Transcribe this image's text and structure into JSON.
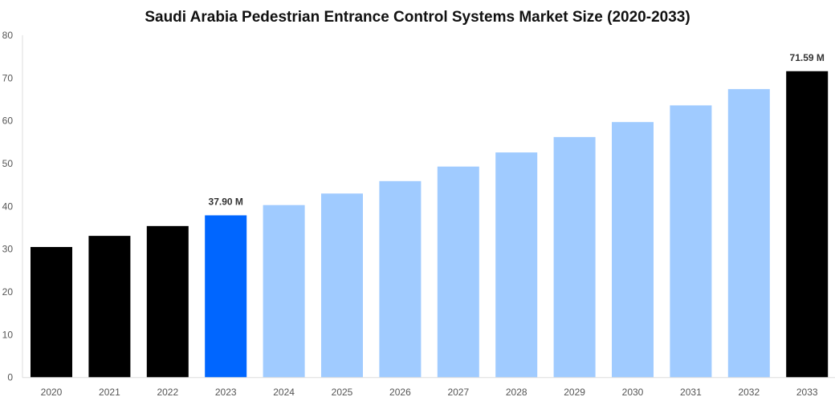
{
  "chart_data": {
    "type": "bar",
    "title": "Saudi Arabia Pedestrian Entrance Control Systems Market Size (2020-2033)",
    "xlabel": "",
    "ylabel": "",
    "ylim": [
      0,
      80
    ],
    "yticks": [
      0,
      10,
      20,
      30,
      40,
      50,
      60,
      70,
      80
    ],
    "grid": false,
    "categories": [
      "2020",
      "2021",
      "2022",
      "2023",
      "2024",
      "2025",
      "2026",
      "2027",
      "2028",
      "2029",
      "2030",
      "2031",
      "2032",
      "2033"
    ],
    "values": [
      30.5,
      33.1,
      35.4,
      37.9,
      40.3,
      43.0,
      45.9,
      49.3,
      52.6,
      56.2,
      59.7,
      63.6,
      67.4,
      71.59
    ],
    "bar_colors": [
      "#000000",
      "#000000",
      "#000000",
      "#0066ff",
      "#a0cbff",
      "#a0cbff",
      "#a0cbff",
      "#a0cbff",
      "#a0cbff",
      "#a0cbff",
      "#a0cbff",
      "#a0cbff",
      "#a0cbff",
      "#000000"
    ],
    "data_labels": {
      "2023": "37.90 M",
      "2033": "71.59 M"
    }
  }
}
